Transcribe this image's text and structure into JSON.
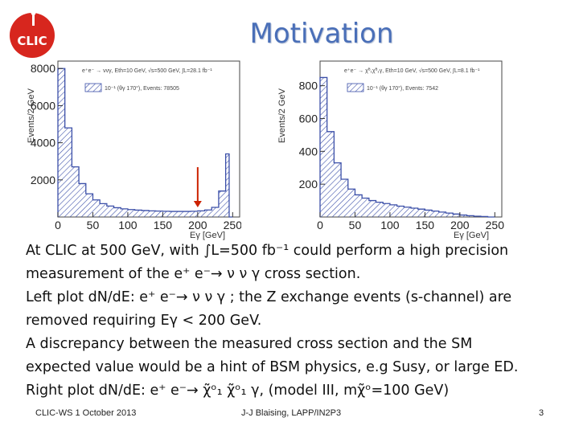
{
  "slide": {
    "title": "Motivation",
    "logo_text": "CLIC",
    "bullets": [
      "At CLIC at 500 GeV, with ∫L=500 fb⁻¹ could perform a high precision",
      "measurement of the e⁺ e⁻→ ν ν γ cross section.",
      "Left plot dN/dE: e⁺ e⁻→ ν ν γ ; the Z exchange events (s-channel) are",
      "removed requiring Eγ < 200 GeV.",
      "A discrepancy between the measured cross section and the SM",
      "expected value would be a hint of BSM physics, e.g Susy, or large ED.",
      "Right plot dN/dE: e⁺ e⁻→ χ̃ᵒ₁ χ̃ᵒ₁ γ, (model III, mχ̃ᵒ=100 GeV)"
    ]
  },
  "footer": {
    "left": "CLIC-WS 1 October 2013",
    "center": "J-J Blaising, LAPP/IN2P3",
    "right": "3"
  },
  "colors": {
    "title": "#4a6fb8",
    "hist": "#3b4fa8",
    "arrow": "#cc2200",
    "logo_red": "#d7261e"
  },
  "chart_data": [
    {
      "type": "bar",
      "title": "e⁺e⁻ → ννγ, Eth=10 GeV, √s=500 GeV, ∫L=28.1 fb⁻¹",
      "legend": "10⁻¹ (θγ 170°), Events: 78505",
      "xlabel": "Eγ [GeV]",
      "ylabel": "Events/2 GeV",
      "xlim": [
        0,
        260
      ],
      "ylim": [
        0,
        8400
      ],
      "xticks": [
        0,
        50,
        100,
        150,
        200,
        250
      ],
      "yticks": [
        2000,
        4000,
        6000,
        8000
      ],
      "arrow_at": 200,
      "x": [
        10,
        20,
        30,
        40,
        50,
        60,
        70,
        80,
        90,
        100,
        110,
        120,
        130,
        140,
        150,
        160,
        170,
        180,
        190,
        200,
        210,
        220,
        230,
        240,
        245,
        250
      ],
      "values": [
        8000,
        4800,
        2700,
        1800,
        1250,
        920,
        720,
        590,
        500,
        440,
        400,
        370,
        350,
        330,
        320,
        310,
        300,
        300,
        300,
        310,
        330,
        380,
        520,
        1400,
        3400,
        0
      ]
    },
    {
      "type": "bar",
      "title": "e⁺e⁻ → χ̃⁰₁χ̃⁰₁γ, Eth=10 GeV, √s=500 GeV, ∫L=8.1 fb⁻¹",
      "legend": "10⁻¹ (θγ 170°), Events: 7542",
      "xlabel": "Eγ [GeV]",
      "ylabel": "Events/2 GeV",
      "xlim": [
        0,
        260
      ],
      "ylim": [
        0,
        950
      ],
      "xticks": [
        0,
        50,
        100,
        150,
        200,
        250
      ],
      "yticks": [
        200,
        400,
        600,
        800
      ],
      "x": [
        10,
        20,
        30,
        40,
        50,
        60,
        70,
        80,
        90,
        100,
        110,
        120,
        130,
        140,
        150,
        160,
        170,
        180,
        190,
        200,
        210,
        220,
        230,
        240,
        250
      ],
      "values": [
        850,
        520,
        330,
        230,
        170,
        135,
        115,
        100,
        90,
        82,
        74,
        66,
        60,
        54,
        48,
        42,
        36,
        30,
        24,
        18,
        12,
        8,
        5,
        3,
        0
      ]
    }
  ]
}
